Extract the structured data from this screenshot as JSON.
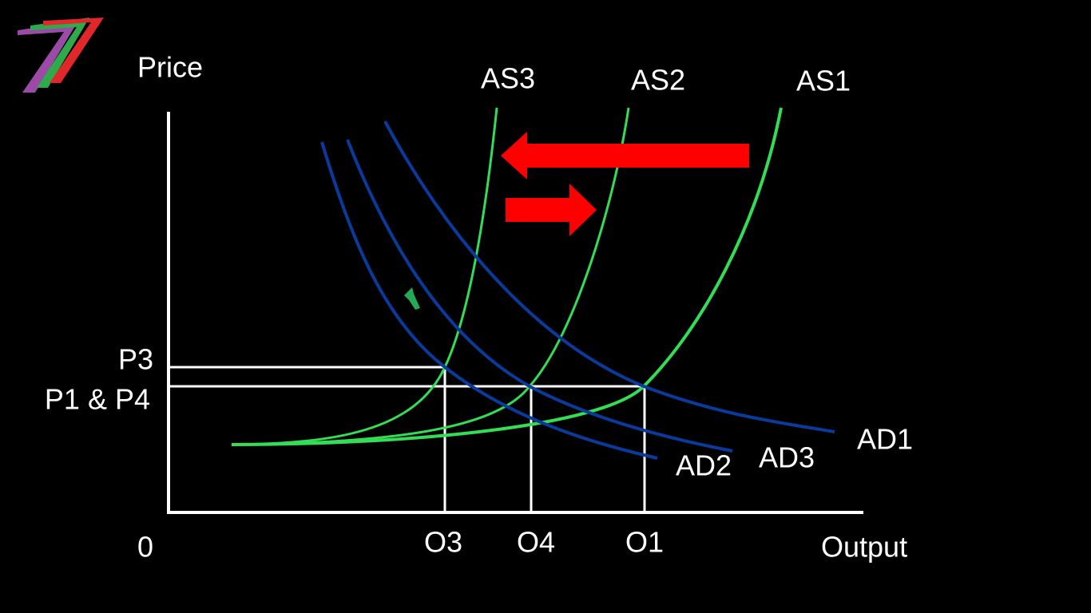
{
  "axes": {
    "y_label": "Price",
    "x_label": "Output",
    "origin": "0"
  },
  "price_levels": [
    "P3",
    "P1 & P4"
  ],
  "output_levels": [
    "O3",
    "O4",
    "O1"
  ],
  "supply_curves": [
    "AS3",
    "AS2",
    "AS1"
  ],
  "demand_curves": [
    "AD1",
    "AD2",
    "AD3"
  ]
}
